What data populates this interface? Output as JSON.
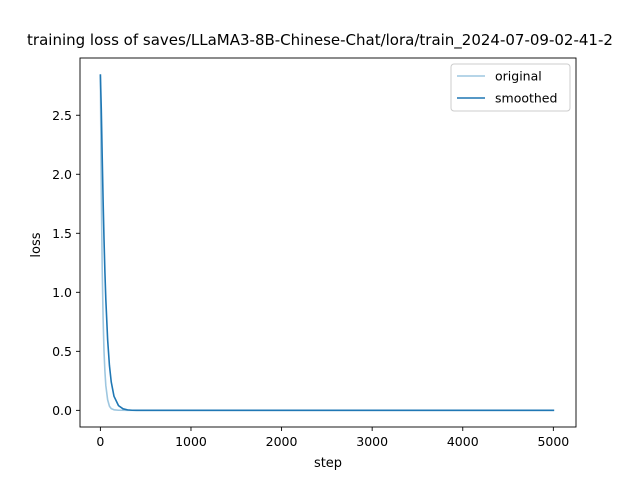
{
  "chart_data": {
    "type": "line",
    "title": "training loss of saves/LLaMA3-8B-Chinese-Chat/lora/train_2024-07-09-02-41-2",
    "xlabel": "step",
    "ylabel": "loss",
    "xlim": [
      -225,
      5250
    ],
    "ylim": [
      -0.141,
      2.985
    ],
    "xticks": [
      0,
      1000,
      2000,
      3000,
      4000,
      5000
    ],
    "xtick_labels": [
      "0",
      "1000",
      "2000",
      "3000",
      "4000",
      "5000"
    ],
    "yticks": [
      0.0,
      0.5,
      1.0,
      1.5,
      2.0,
      2.5
    ],
    "ytick_labels": [
      "0.0",
      "0.5",
      "1.0",
      "1.5",
      "2.0",
      "2.5"
    ],
    "grid": false,
    "legend_position": "top-right",
    "series": [
      {
        "name": "original",
        "color": "#9ec7e0",
        "x": [
          0,
          10,
          20,
          30,
          40,
          50,
          60,
          80,
          100,
          120,
          150,
          200,
          300,
          400,
          500,
          1000,
          2000,
          3000,
          4000,
          5000
        ],
        "y": [
          2.84,
          1.85,
          1.2,
          0.78,
          0.5,
          0.33,
          0.21,
          0.09,
          0.035,
          0.015,
          0.005,
          0.001,
          0.0,
          0.0,
          0.0,
          0.0,
          0.0,
          0.0,
          0.0,
          0.0
        ]
      },
      {
        "name": "smoothed",
        "color": "#1f77b4",
        "x": [
          0,
          10,
          20,
          30,
          40,
          50,
          60,
          80,
          100,
          120,
          150,
          200,
          250,
          300,
          350,
          400,
          500,
          1000,
          2000,
          3000,
          4000,
          5000
        ],
        "y": [
          2.84,
          2.55,
          2.15,
          1.78,
          1.45,
          1.17,
          0.94,
          0.6,
          0.38,
          0.24,
          0.12,
          0.04,
          0.013,
          0.004,
          0.001,
          0.0,
          0.0,
          0.0,
          0.0,
          0.0,
          0.0,
          0.0
        ]
      }
    ]
  }
}
